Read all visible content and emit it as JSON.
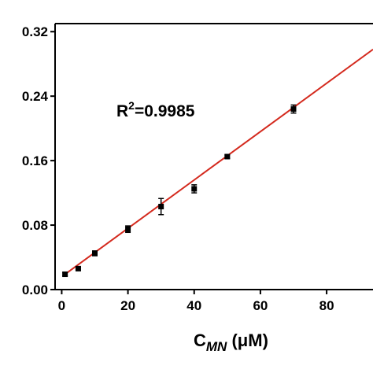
{
  "chart_data": {
    "type": "scatter",
    "title": "",
    "xlabel": {
      "main": "C",
      "subscript": "MN",
      "unit": " (μM)"
    },
    "ylabel": "",
    "xlim": [
      -2,
      94
    ],
    "ylim": [
      0,
      0.33
    ],
    "x_ticks": [
      0,
      20,
      40,
      60,
      80
    ],
    "x_tick_labels": [
      "0",
      "20",
      "40",
      "60",
      "80"
    ],
    "y_ticks": [
      0,
      0.08,
      0.16,
      0.24,
      0.32
    ],
    "y_tick_labels": [
      "0.00",
      "0.08",
      "0.16",
      "0.24",
      "0.32"
    ],
    "series": [
      {
        "x": [
          1,
          5,
          10,
          20,
          30,
          40,
          50,
          70
        ],
        "y": [
          0.019,
          0.026,
          0.045,
          0.075,
          0.103,
          0.125,
          0.165,
          0.224
        ],
        "error": [
          0.002,
          0.002,
          0.003,
          0.004,
          0.01,
          0.005,
          0.002,
          0.005
        ]
      }
    ],
    "fit_line": {
      "x": [
        1,
        94
      ],
      "y": [
        0.019,
        0.298
      ]
    },
    "annotation": {
      "base": "R",
      "superscript": "2",
      "rest": "=0.9985"
    },
    "colors": {
      "points": "#000000",
      "fit_line": "#d42a1e",
      "axes": "#000000"
    },
    "grid": false,
    "legend": "none"
  }
}
